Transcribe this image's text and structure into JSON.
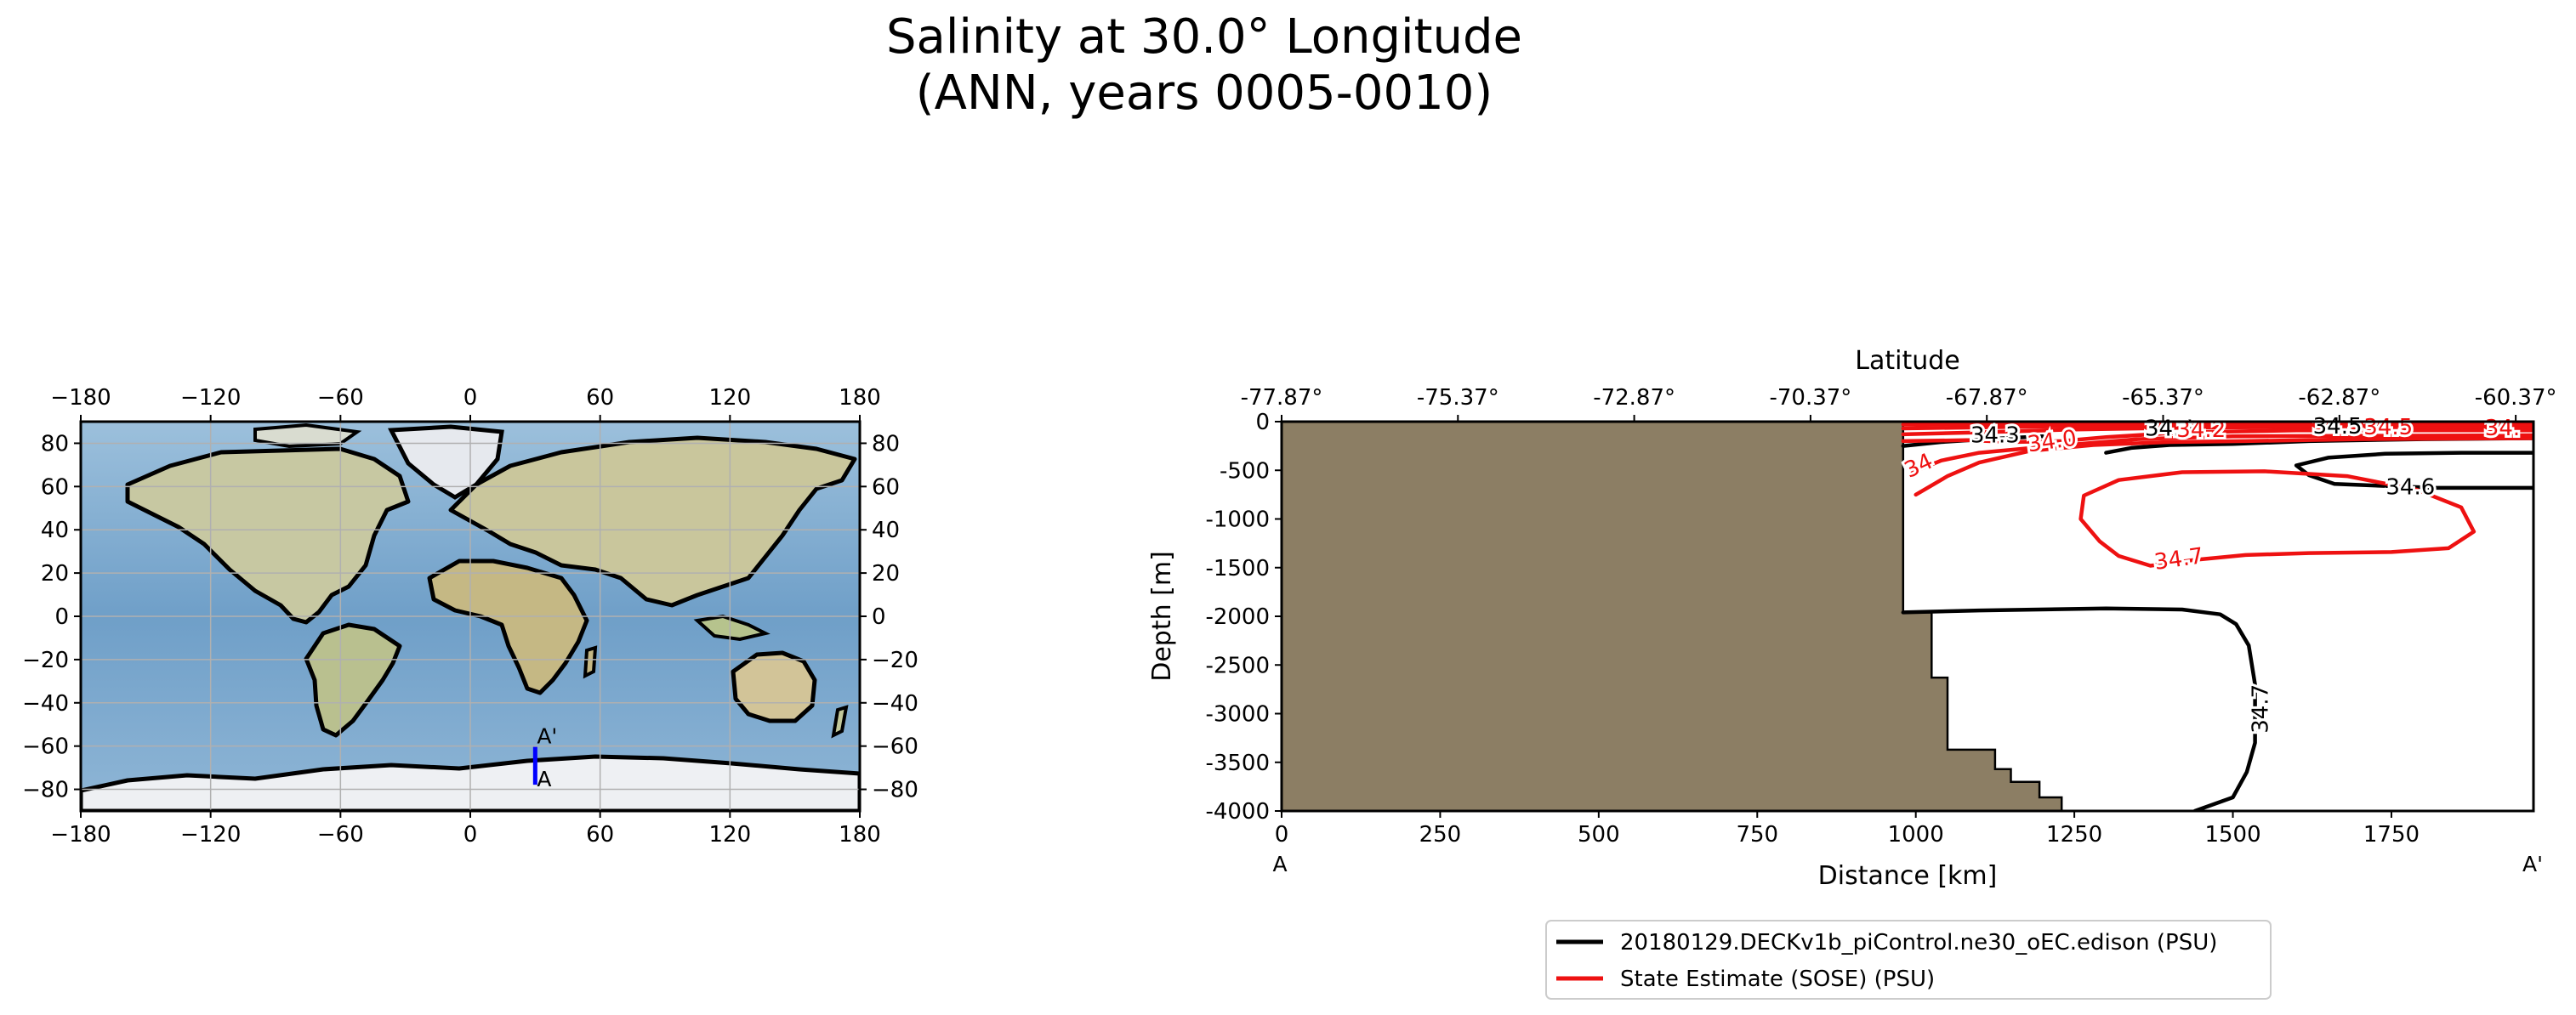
{
  "figure": {
    "title_line1": "Salinity at 30.0° Longitude",
    "title_line2": "(ANN, years 0005-0010)"
  },
  "colors": {
    "land": "#8c7e64",
    "model_contour": "#000000",
    "obs_contour": "#ee1111",
    "section_line": "#0000ff",
    "grid": "#b0b0b0"
  },
  "chart_data": [
    {
      "type": "map",
      "name": "transect-location-map",
      "projection": "PlateCarree",
      "xlim": [
        -180,
        180
      ],
      "ylim": [
        -90,
        90
      ],
      "xticks": [
        -180,
        -120,
        -60,
        0,
        60,
        120,
        180
      ],
      "yticks": [
        -80,
        -60,
        -40,
        -20,
        0,
        20,
        40,
        60,
        80
      ],
      "xtick_labels": [
        "−180",
        "−120",
        "−60",
        "0",
        "60",
        "120",
        "180"
      ],
      "ytick_labels": [
        "−80",
        "−60",
        "−40",
        "−20",
        "0",
        "20",
        "40",
        "60",
        "80"
      ],
      "grid": true,
      "section": {
        "lon": 30.0,
        "lat_start": -77.87,
        "lat_end": -60.37,
        "start_label": "A",
        "end_label": "A'"
      }
    },
    {
      "type": "contour",
      "name": "salinity-transect",
      "xlabel": "Distance [km]",
      "ylabel": "Depth [m]",
      "top_xlabel": "Latitude",
      "xlim": [
        0,
        1974
      ],
      "ylim": [
        -4000,
        0
      ],
      "xticks": [
        0,
        250,
        500,
        750,
        1000,
        1250,
        1500,
        1750
      ],
      "yticks": [
        0,
        -500,
        -1000,
        -1500,
        -2000,
        -2500,
        -3000,
        -3500,
        -4000
      ],
      "top_xticks": [
        0,
        278,
        556,
        834,
        1112,
        1390,
        1668,
        1946
      ],
      "top_xtick_labels": [
        "-77.87°",
        "-75.37°",
        "-72.87°",
        "-70.37°",
        "-67.87°",
        "-65.37°",
        "-62.87°",
        "-60.37°"
      ],
      "start_label": "A",
      "end_label": "A'",
      "bathymetry_km_depth": [
        [
          0,
          0
        ],
        [
          980,
          0
        ],
        [
          980,
          -1960
        ],
        [
          1025,
          -1960
        ],
        [
          1025,
          -2630
        ],
        [
          1050,
          -2630
        ],
        [
          1050,
          -3370
        ],
        [
          1125,
          -3370
        ],
        [
          1125,
          -3570
        ],
        [
          1150,
          -3570
        ],
        [
          1150,
          -3700
        ],
        [
          1195,
          -3700
        ],
        [
          1195,
          -3860
        ],
        [
          1230,
          -3860
        ],
        [
          1230,
          -4000
        ],
        [
          0,
          -4000
        ]
      ],
      "contour_labels": [
        {
          "series": "model",
          "text": "34.6",
          "x": 1780,
          "y": -680,
          "angle": 0
        },
        {
          "series": "model",
          "text": "34.7",
          "x": 1545,
          "y": -2950,
          "angle": -90
        },
        {
          "series": "model",
          "text": "34.3",
          "x": 1125,
          "y": -150,
          "angle": 0
        },
        {
          "series": "model",
          "text": "34.5",
          "x": 1400,
          "y": -80,
          "angle": 0
        },
        {
          "series": "model",
          "text": "34.5",
          "x": 1665,
          "y": -55,
          "angle": 0
        },
        {
          "series": "obs",
          "text": "34.7",
          "x": 1415,
          "y": -1420,
          "angle": -8
        },
        {
          "series": "obs",
          "text": "34.0",
          "x": 1215,
          "y": -210,
          "angle": -8
        },
        {
          "series": "obs",
          "text": "34.2",
          "x": 1450,
          "y": -90,
          "angle": 0
        },
        {
          "series": "obs",
          "text": "34.5",
          "x": 1745,
          "y": -65,
          "angle": 0
        },
        {
          "series": "obs",
          "text": "34.",
          "x": 1925,
          "y": -75,
          "angle": 0
        },
        {
          "series": "obs",
          "text": "34",
          "x": 1005,
          "y": -460,
          "angle": -25
        }
      ],
      "series": [
        {
          "name": "20180129.DECKv1b_piControl.ne30_oEC.edison (PSU)",
          "color": "#000000",
          "contours": [
            {
              "level": 34.6,
              "points": [
                [
                  1974,
                  -680
                ],
                [
                  1820,
                  -680
                ],
                [
                  1740,
                  -660
                ],
                [
                  1660,
                  -640
                ],
                [
                  1620,
                  -550
                ],
                [
                  1600,
                  -450
                ],
                [
                  1650,
                  -370
                ],
                [
                  1740,
                  -330
                ],
                [
                  1860,
                  -320
                ],
                [
                  1974,
                  -320
                ]
              ]
            },
            {
              "level": 34.7,
              "points": [
                [
                  980,
                  -1960
                ],
                [
                  1100,
                  -1940
                ],
                [
                  1300,
                  -1920
                ],
                [
                  1420,
                  -1930
                ],
                [
                  1480,
                  -1980
                ],
                [
                  1505,
                  -2080
                ],
                [
                  1525,
                  -2300
                ],
                [
                  1535,
                  -2700
                ],
                [
                  1535,
                  -3300
                ],
                [
                  1522,
                  -3600
                ],
                [
                  1500,
                  -3860
                ],
                [
                  1440,
                  -4000
                ]
              ]
            },
            {
              "level": 34.5,
              "points": [
                [
                  1300,
                  -320
                ],
                [
                  1340,
                  -270
                ],
                [
                  1400,
                  -240
                ],
                [
                  1500,
                  -230
                ],
                [
                  1620,
                  -200
                ],
                [
                  1800,
                  -180
                ],
                [
                  1974,
                  -170
                ]
              ]
            },
            {
              "level": 34.3,
              "points": [
                [
                  980,
                  -250
                ],
                [
                  1040,
                  -210
                ],
                [
                  1110,
                  -180
                ],
                [
                  1200,
                  -150
                ]
              ]
            }
          ]
        },
        {
          "name": "State Estimate (SOSE) (PSU)",
          "color": "#ee1111",
          "contours": [
            {
              "level": 34.7,
              "points": [
                [
                  1370,
                  -1480
                ],
                [
                  1440,
                  -1420
                ],
                [
                  1520,
                  -1370
                ],
                [
                  1620,
                  -1350
                ],
                [
                  1750,
                  -1340
                ],
                [
                  1840,
                  -1300
                ],
                [
                  1880,
                  -1130
                ],
                [
                  1860,
                  -880
                ],
                [
                  1790,
                  -700
                ],
                [
                  1680,
                  -560
                ],
                [
                  1550,
                  -510
                ],
                [
                  1420,
                  -520
                ],
                [
                  1320,
                  -600
                ],
                [
                  1265,
                  -760
                ],
                [
                  1260,
                  -1000
                ],
                [
                  1290,
                  -1230
                ],
                [
                  1320,
                  -1380
                ],
                [
                  1370,
                  -1480
                ]
              ]
            },
            {
              "level": 34.6,
              "points": [
                [
                  1000,
                  -750
                ],
                [
                  1050,
                  -560
                ],
                [
                  1100,
                  -420
                ],
                [
                  1180,
                  -300
                ],
                [
                  1280,
                  -240
                ],
                [
                  1400,
                  -210
                ],
                [
                  1520,
                  -200
                ],
                [
                  1700,
                  -180
                ],
                [
                  1974,
                  -170
                ]
              ]
            },
            {
              "level": 34.5,
              "points": [
                [
                  995,
                  -520
                ],
                [
                  1040,
                  -400
                ],
                [
                  1100,
                  -320
                ],
                [
                  1200,
                  -260
                ],
                [
                  1350,
                  -180
                ],
                [
                  1500,
                  -150
                ],
                [
                  1974,
                  -140
                ]
              ]
            },
            {
              "level": 34.0,
              "points": [
                [
                  980,
                  -200
                ],
                [
                  1080,
                  -190
                ],
                [
                  1150,
                  -210
                ],
                [
                  1230,
                  -200
                ],
                [
                  1300,
                  -160
                ],
                [
                  1420,
                  -110
                ],
                [
                  1600,
                  -90
                ],
                [
                  1974,
                  -90
                ]
              ]
            },
            {
              "level": 34.2,
              "points": [
                [
                  980,
                  -130
                ],
                [
                  1100,
                  -110
                ],
                [
                  1250,
                  -80
                ],
                [
                  1450,
                  -60
                ],
                [
                  1974,
                  -50
                ]
              ]
            },
            {
              "level": 34.3,
              "points": [
                [
                  980,
                  -70
                ],
                [
                  1200,
                  -50
                ],
                [
                  1500,
                  -35
                ],
                [
                  1974,
                  -30
                ]
              ]
            },
            {
              "level": 34.4,
              "points": [
                [
                  980,
                  -30
                ],
                [
                  1300,
                  -18
                ],
                [
                  1974,
                  -12
                ]
              ]
            }
          ]
        }
      ],
      "legend": {
        "placement": "bottom-center",
        "entries": [
          {
            "label": "20180129.DECKv1b_piControl.ne30_oEC.edison (PSU)",
            "color": "#000000"
          },
          {
            "label": "State Estimate (SOSE) (PSU)",
            "color": "#ee1111"
          }
        ]
      }
    }
  ]
}
